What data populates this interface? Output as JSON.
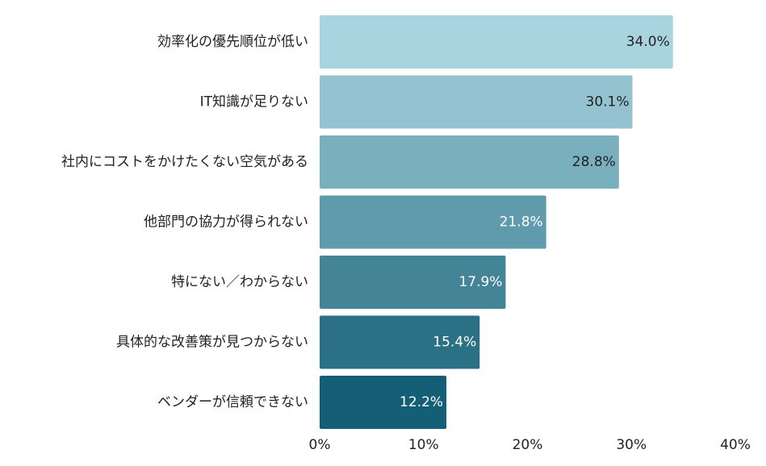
{
  "chart_data": {
    "type": "bar",
    "orientation": "horizontal",
    "categories": [
      "効率化の優先順位が低い",
      "IT知識が足りない",
      "社内にコストをかけたくない空気がある",
      "他部門の協力が得られない",
      "特にない／わからない",
      "具体的な改善策が見つからない",
      "ベンダーが信頼できない"
    ],
    "values": [
      34.0,
      30.1,
      28.8,
      21.8,
      17.9,
      15.4,
      12.2
    ],
    "data_labels": [
      "34.0%",
      "30.1%",
      "28.8%",
      "21.8%",
      "17.9%",
      "15.4%",
      "12.2%"
    ],
    "colors": [
      "#aad3e0",
      "#94c2d0",
      "#7aafbe",
      "#5f9bac",
      "#438597",
      "#2b7085",
      "#145f75"
    ],
    "label_colors": [
      "#222222",
      "#222222",
      "#222222",
      "#ffffff",
      "#ffffff",
      "#ffffff",
      "#ffffff"
    ],
    "xlim": [
      0,
      40
    ],
    "x_ticks": [
      0,
      10,
      20,
      30,
      40
    ],
    "x_tick_labels": [
      "0%",
      "10%",
      "20%",
      "30%",
      "40%"
    ],
    "grid": false,
    "legend": "none",
    "title": "",
    "xlabel": "",
    "ylabel": ""
  }
}
